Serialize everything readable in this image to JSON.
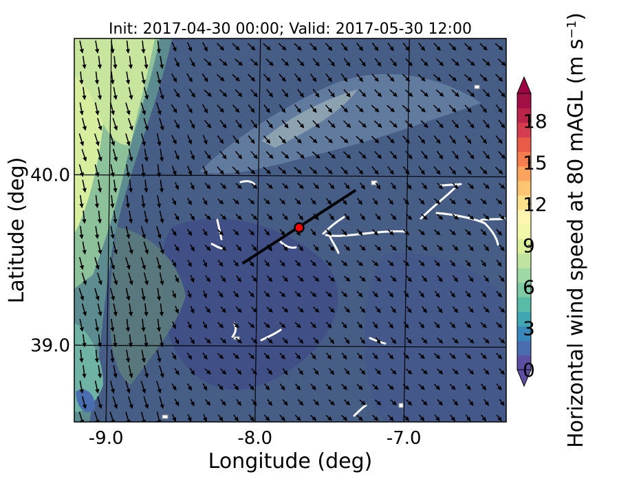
{
  "chart_data": {
    "type": "heatmap",
    "title": "Init: 2017-04-30 00:00; Valid: 2017-05-30 12:00",
    "xlabel": "Longitude (deg)",
    "ylabel": "Latitude (deg)",
    "xlim": [
      -9.25,
      -6.35
    ],
    "ylim": [
      38.55,
      40.8
    ],
    "x_ticks": [
      -9.0,
      -8.0,
      -7.0
    ],
    "x_tick_labels": [
      "-9.0",
      "-8.0",
      "-7.0"
    ],
    "y_ticks": [
      39.0,
      40.0
    ],
    "y_tick_labels": [
      "39.0",
      "40.0"
    ],
    "grid": true,
    "colorbar": {
      "label": "Horizontal wind speed at 80 mAGL (m s",
      "label_sup": "−1",
      "label_end": ")",
      "min": 0,
      "max": 20,
      "extend": "both",
      "ticks": [
        0,
        3,
        6,
        9,
        12,
        15,
        18
      ],
      "tick_labels": [
        "0",
        "3",
        "6",
        "9",
        "12",
        "15",
        "18"
      ],
      "colors": [
        "#5c4fa2",
        "#4a6db0",
        "#3a88bb",
        "#3fa6b2",
        "#58bba5",
        "#7dcaa4",
        "#9ed8a4",
        "#c0e49f",
        "#dcf09c",
        "#f1f8a7",
        "#fef6b0",
        "#fde28b",
        "#fdc572",
        "#fca45f",
        "#f57e4e",
        "#e85c47",
        "#d43d4f",
        "#bc2449",
        "#a20f45"
      ],
      "under_color": "#5e4fa2",
      "over_color": "#9e0142"
    },
    "cross_section_line": {
      "start": [
        -8.12,
        39.48
      ],
      "end": [
        -7.36,
        39.91
      ],
      "color": "#000000"
    },
    "marker": {
      "lon": -7.74,
      "lat": 39.69,
      "color": "#ff0000"
    },
    "wind_field_note_colors": [
      "#4a6db0",
      "#5e8aa2",
      "#c0e49f"
    ]
  }
}
